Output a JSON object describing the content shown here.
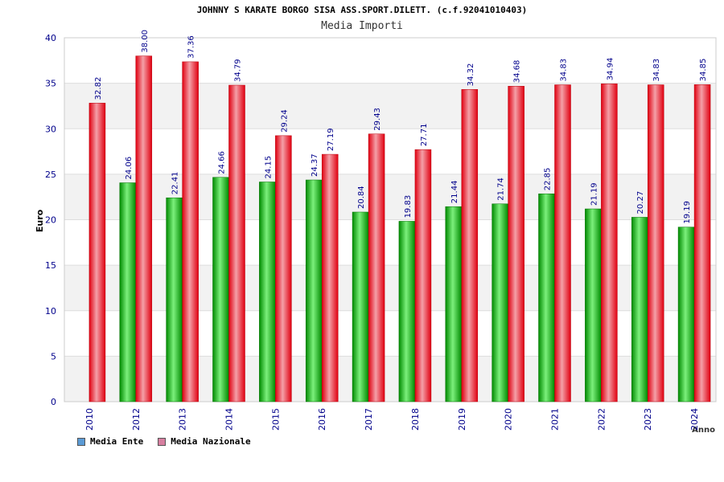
{
  "chart_data": {
    "type": "bar",
    "title": "JOHNNY S KARATE BORGO SISA ASS.SPORT.DILETT. (c.f.92041010403)",
    "subtitle": "Media Importi",
    "xlabel": "Anno",
    "ylabel": "Euro",
    "ylim": [
      0,
      40
    ],
    "yticks": [
      0,
      5,
      10,
      15,
      20,
      25,
      30,
      35,
      40
    ],
    "categories": [
      "2010",
      "2012",
      "2013",
      "2014",
      "2015",
      "2016",
      "2017",
      "2018",
      "2019",
      "2020",
      "2021",
      "2022",
      "2023",
      "2024"
    ],
    "series": [
      {
        "name": "Media Ente",
        "values": [
          null,
          24.06,
          22.41,
          24.66,
          24.15,
          24.37,
          20.84,
          19.83,
          21.44,
          21.74,
          22.85,
          21.19,
          20.27,
          19.19
        ],
        "color": "#00b000",
        "legend_color": "#5b9bd5"
      },
      {
        "name": "Media Nazionale",
        "values": [
          32.82,
          38.0,
          37.36,
          34.79,
          29.24,
          27.19,
          29.43,
          27.71,
          34.32,
          34.68,
          34.83,
          34.94,
          34.83,
          34.85
        ],
        "color": "#e8101c",
        "legend_color": "#d77fa0"
      }
    ],
    "data_labels": [
      [
        "",
        "24.06",
        "22.41",
        "24.66",
        "24.15",
        "24.37",
        "20.84",
        "19.83",
        "21.44",
        "21.74",
        "22.85",
        "21.19",
        "20.27",
        "19.19"
      ],
      [
        "32.82",
        "38.00",
        "37.36",
        "34.79",
        "29.24",
        "27.19",
        "29.43",
        "27.71",
        "34.32",
        "34.68",
        "34.83",
        "34.94",
        "34.83",
        "34.85"
      ]
    ],
    "grid": true,
    "legend": "bottom-left"
  }
}
